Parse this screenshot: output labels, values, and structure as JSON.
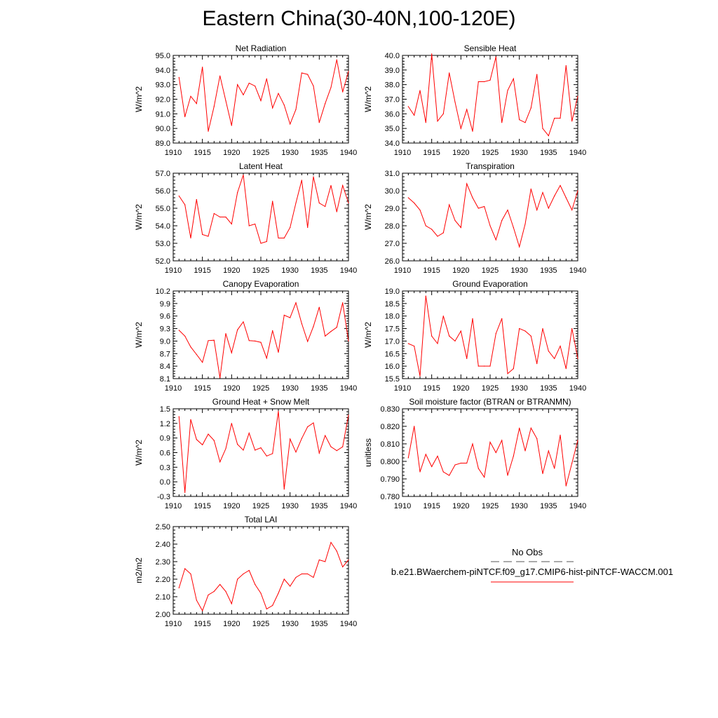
{
  "title": "Eastern China(30-40N,100-120E)",
  "colors": {
    "line": "#ff0000",
    "axis": "#000000",
    "obs": "#555555"
  },
  "legend": {
    "obs_label": "No Obs",
    "case_label": "b.e21.BWaerchem-piNTCF.f09_g17.CMIP6-hist-piNTCF-WACCM.001"
  },
  "chart_data": [
    {
      "type": "line",
      "title": "Net Radiation",
      "xlabel": "",
      "ylabel": "W/m^2",
      "xlim": [
        1910,
        1940
      ],
      "ylim": [
        89.0,
        95.0
      ],
      "xticks": [
        1910,
        1915,
        1920,
        1925,
        1930,
        1935,
        1940
      ],
      "yticks": [
        "89.0",
        "90.0",
        "91.0",
        "92.0",
        "93.0",
        "94.0",
        "95.0"
      ],
      "x": [
        1911,
        1912,
        1913,
        1914,
        1915,
        1916,
        1917,
        1918,
        1919,
        1920,
        1921,
        1922,
        1923,
        1924,
        1925,
        1926,
        1927,
        1928,
        1929,
        1930,
        1931,
        1932,
        1933,
        1934,
        1935,
        1936,
        1937,
        1938,
        1939,
        1940
      ],
      "values": [
        93.5,
        90.8,
        92.2,
        91.7,
        94.2,
        89.8,
        91.5,
        93.6,
        91.9,
        90.2,
        93.0,
        92.3,
        93.1,
        92.9,
        91.9,
        93.4,
        91.4,
        92.4,
        91.6,
        90.3,
        91.3,
        93.8,
        93.7,
        92.9,
        90.4,
        91.7,
        92.8,
        94.7,
        92.5,
        93.9
      ],
      "series_name": ""
    },
    {
      "type": "line",
      "title": "Sensible Heat",
      "xlabel": "",
      "ylabel": "W/m^2",
      "xlim": [
        1910,
        1940
      ],
      "ylim": [
        34.0,
        40.0
      ],
      "xticks": [
        1910,
        1915,
        1920,
        1925,
        1930,
        1935,
        1940
      ],
      "yticks": [
        "34.0",
        "35.0",
        "36.0",
        "37.0",
        "38.0",
        "39.0",
        "40.0"
      ],
      "x": [
        1911,
        1912,
        1913,
        1914,
        1915,
        1916,
        1917,
        1918,
        1919,
        1920,
        1921,
        1922,
        1923,
        1924,
        1925,
        1926,
        1927,
        1928,
        1929,
        1930,
        1931,
        1932,
        1933,
        1934,
        1935,
        1936,
        1937,
        1938,
        1939,
        1940
      ],
      "values": [
        36.5,
        35.9,
        37.6,
        35.4,
        40.1,
        35.5,
        36.0,
        38.8,
        36.8,
        35.0,
        36.3,
        34.8,
        38.2,
        38.2,
        38.3,
        39.9,
        35.4,
        37.6,
        38.4,
        35.6,
        35.4,
        36.4,
        38.7,
        35.0,
        34.5,
        35.7,
        35.7,
        39.3,
        35.5,
        37.2
      ]
    },
    {
      "type": "line",
      "title": "Latent Heat",
      "xlabel": "",
      "ylabel": "W/m^2",
      "xlim": [
        1910,
        1940
      ],
      "ylim": [
        52.0,
        57.0
      ],
      "xticks": [
        1910,
        1915,
        1920,
        1925,
        1930,
        1935,
        1940
      ],
      "yticks": [
        "52.0",
        "53.0",
        "54.0",
        "55.0",
        "56.0",
        "57.0"
      ],
      "x": [
        1911,
        1912,
        1913,
        1914,
        1915,
        1916,
        1917,
        1918,
        1919,
        1920,
        1921,
        1922,
        1923,
        1924,
        1925,
        1926,
        1927,
        1928,
        1929,
        1930,
        1931,
        1932,
        1933,
        1934,
        1935,
        1936,
        1937,
        1938,
        1939,
        1940
      ],
      "values": [
        55.7,
        55.2,
        53.3,
        55.5,
        53.5,
        53.4,
        54.7,
        54.5,
        54.5,
        54.1,
        55.9,
        56.9,
        54.0,
        54.1,
        53.0,
        53.1,
        55.4,
        53.3,
        53.3,
        53.9,
        55.3,
        56.6,
        53.9,
        56.8,
        55.3,
        55.1,
        56.3,
        54.8,
        56.3,
        55.3
      ]
    },
    {
      "type": "line",
      "title": "Transpiration",
      "xlabel": "",
      "ylabel": "W/m^2",
      "xlim": [
        1910,
        1940
      ],
      "ylim": [
        26.0,
        31.0
      ],
      "xticks": [
        1910,
        1915,
        1920,
        1925,
        1930,
        1935,
        1940
      ],
      "yticks": [
        "26.0",
        "27.0",
        "28.0",
        "29.0",
        "30.0",
        "31.0"
      ],
      "x": [
        1911,
        1912,
        1913,
        1914,
        1915,
        1916,
        1917,
        1918,
        1919,
        1920,
        1921,
        1922,
        1923,
        1924,
        1925,
        1926,
        1927,
        1928,
        1929,
        1930,
        1931,
        1932,
        1933,
        1934,
        1935,
        1936,
        1937,
        1938,
        1939,
        1940
      ],
      "values": [
        29.6,
        29.3,
        28.9,
        28.0,
        27.8,
        27.4,
        27.6,
        29.2,
        28.3,
        27.9,
        30.4,
        29.6,
        29.0,
        29.1,
        28.0,
        27.2,
        28.3,
        28.9,
        27.9,
        26.8,
        28.1,
        30.1,
        28.9,
        29.9,
        29.0,
        29.7,
        30.3,
        29.6,
        28.9,
        30.0
      ]
    },
    {
      "type": "line",
      "title": "Canopy Evaporation",
      "xlabel": "",
      "ylabel": "W/m^2",
      "xlim": [
        1910,
        1940
      ],
      "ylim": [
        8.1,
        10.2
      ],
      "xticks": [
        1910,
        1915,
        1920,
        1925,
        1930,
        1935,
        1940
      ],
      "yticks": [
        "8.1",
        "8.4",
        "8.7",
        "9.0",
        "9.3",
        "9.6",
        "9.9",
        "10.2"
      ],
      "x": [
        1911,
        1912,
        1913,
        1914,
        1915,
        1916,
        1917,
        1918,
        1919,
        1920,
        1921,
        1922,
        1923,
        1924,
        1925,
        1926,
        1927,
        1928,
        1929,
        1930,
        1931,
        1932,
        1933,
        1934,
        1935,
        1936,
        1937,
        1938,
        1939,
        1940
      ],
      "values": [
        9.26,
        9.12,
        8.86,
        8.68,
        8.49,
        9.01,
        9.02,
        8.12,
        9.18,
        8.72,
        9.27,
        9.46,
        9.01,
        9.0,
        8.97,
        8.59,
        9.25,
        8.73,
        9.62,
        9.56,
        9.92,
        9.42,
        8.99,
        9.35,
        9.81,
        9.12,
        9.23,
        9.33,
        9.92,
        9.0
      ]
    },
    {
      "type": "line",
      "title": "Ground Evaporation",
      "xlabel": "",
      "ylabel": "W/m^2",
      "xlim": [
        1910,
        1940
      ],
      "ylim": [
        15.5,
        19.0
      ],
      "xticks": [
        1910,
        1915,
        1920,
        1925,
        1930,
        1935,
        1940
      ],
      "yticks": [
        "15.5",
        "16.0",
        "16.5",
        "17.0",
        "17.5",
        "18.0",
        "18.5",
        "19.0"
      ],
      "x": [
        1911,
        1912,
        1913,
        1914,
        1915,
        1916,
        1917,
        1918,
        1919,
        1920,
        1921,
        1922,
        1923,
        1924,
        1925,
        1926,
        1927,
        1928,
        1929,
        1930,
        1931,
        1932,
        1933,
        1934,
        1935,
        1936,
        1937,
        1938,
        1939,
        1940
      ],
      "values": [
        16.9,
        16.8,
        15.6,
        18.8,
        17.2,
        16.9,
        18.0,
        17.2,
        17.0,
        17.4,
        16.3,
        17.9,
        16.0,
        16.0,
        16.0,
        17.3,
        17.9,
        15.7,
        15.9,
        17.5,
        17.4,
        17.2,
        16.1,
        17.5,
        16.6,
        16.3,
        16.8,
        15.9,
        17.5,
        16.3
      ]
    },
    {
      "type": "line",
      "title": "Ground Heat + Snow Melt",
      "xlabel": "",
      "ylabel": "W/m^2",
      "xlim": [
        1910,
        1940
      ],
      "ylim": [
        -0.3,
        1.5
      ],
      "xticks": [
        1910,
        1915,
        1920,
        1925,
        1930,
        1935,
        1940
      ],
      "yticks": [
        "-0.3",
        "0.0",
        "0.3",
        "0.6",
        "0.9",
        "1.2",
        "1.5"
      ],
      "x": [
        1911,
        1912,
        1913,
        1914,
        1915,
        1916,
        1917,
        1918,
        1919,
        1920,
        1921,
        1922,
        1923,
        1924,
        1925,
        1926,
        1927,
        1928,
        1929,
        1930,
        1931,
        1932,
        1933,
        1934,
        1935,
        1936,
        1937,
        1938,
        1939,
        1940
      ],
      "values": [
        1.34,
        -0.22,
        1.28,
        0.87,
        0.76,
        0.98,
        0.85,
        0.41,
        0.68,
        1.2,
        0.77,
        0.65,
        1.0,
        0.65,
        0.7,
        0.53,
        0.58,
        1.45,
        -0.15,
        0.88,
        0.61,
        0.89,
        1.13,
        1.21,
        0.59,
        0.95,
        0.72,
        0.64,
        0.72,
        1.37
      ]
    },
    {
      "type": "line",
      "title": "Soil moisture factor (BTRAN or BTRANMN)",
      "xlabel": "",
      "ylabel": "unitless",
      "xlim": [
        1910,
        1940
      ],
      "ylim": [
        0.78,
        0.83
      ],
      "xticks": [
        1910,
        1915,
        1920,
        1925,
        1930,
        1935,
        1940
      ],
      "yticks": [
        "0.780",
        "0.790",
        "0.800",
        "0.810",
        "0.820",
        "0.830"
      ],
      "x": [
        1911,
        1912,
        1913,
        1914,
        1915,
        1916,
        1917,
        1918,
        1919,
        1920,
        1921,
        1922,
        1923,
        1924,
        1925,
        1926,
        1927,
        1928,
        1929,
        1930,
        1931,
        1932,
        1933,
        1934,
        1935,
        1936,
        1937,
        1938,
        1939,
        1940
      ],
      "values": [
        0.802,
        0.82,
        0.794,
        0.804,
        0.797,
        0.803,
        0.794,
        0.792,
        0.798,
        0.799,
        0.799,
        0.81,
        0.796,
        0.791,
        0.811,
        0.805,
        0.812,
        0.792,
        0.803,
        0.819,
        0.806,
        0.819,
        0.813,
        0.793,
        0.806,
        0.796,
        0.815,
        0.786,
        0.799,
        0.812
      ]
    },
    {
      "type": "line",
      "title": "Total LAI",
      "xlabel": "",
      "ylabel": "m2/m2",
      "xlim": [
        1910,
        1940
      ],
      "ylim": [
        2.0,
        2.5
      ],
      "xticks": [
        1910,
        1915,
        1920,
        1925,
        1930,
        1935,
        1940
      ],
      "yticks": [
        "2.00",
        "2.10",
        "2.20",
        "2.30",
        "2.40",
        "2.50"
      ],
      "x": [
        1911,
        1912,
        1913,
        1914,
        1915,
        1916,
        1917,
        1918,
        1919,
        1920,
        1921,
        1922,
        1923,
        1924,
        1925,
        1926,
        1927,
        1928,
        1929,
        1930,
        1931,
        1932,
        1933,
        1934,
        1935,
        1936,
        1937,
        1938,
        1939,
        1940
      ],
      "values": [
        2.15,
        2.26,
        2.23,
        2.08,
        2.02,
        2.11,
        2.13,
        2.17,
        2.13,
        2.06,
        2.2,
        2.23,
        2.25,
        2.17,
        2.12,
        2.03,
        2.05,
        2.12,
        2.2,
        2.16,
        2.21,
        2.23,
        2.23,
        2.21,
        2.31,
        2.3,
        2.41,
        2.36,
        2.27,
        2.31
      ]
    }
  ]
}
